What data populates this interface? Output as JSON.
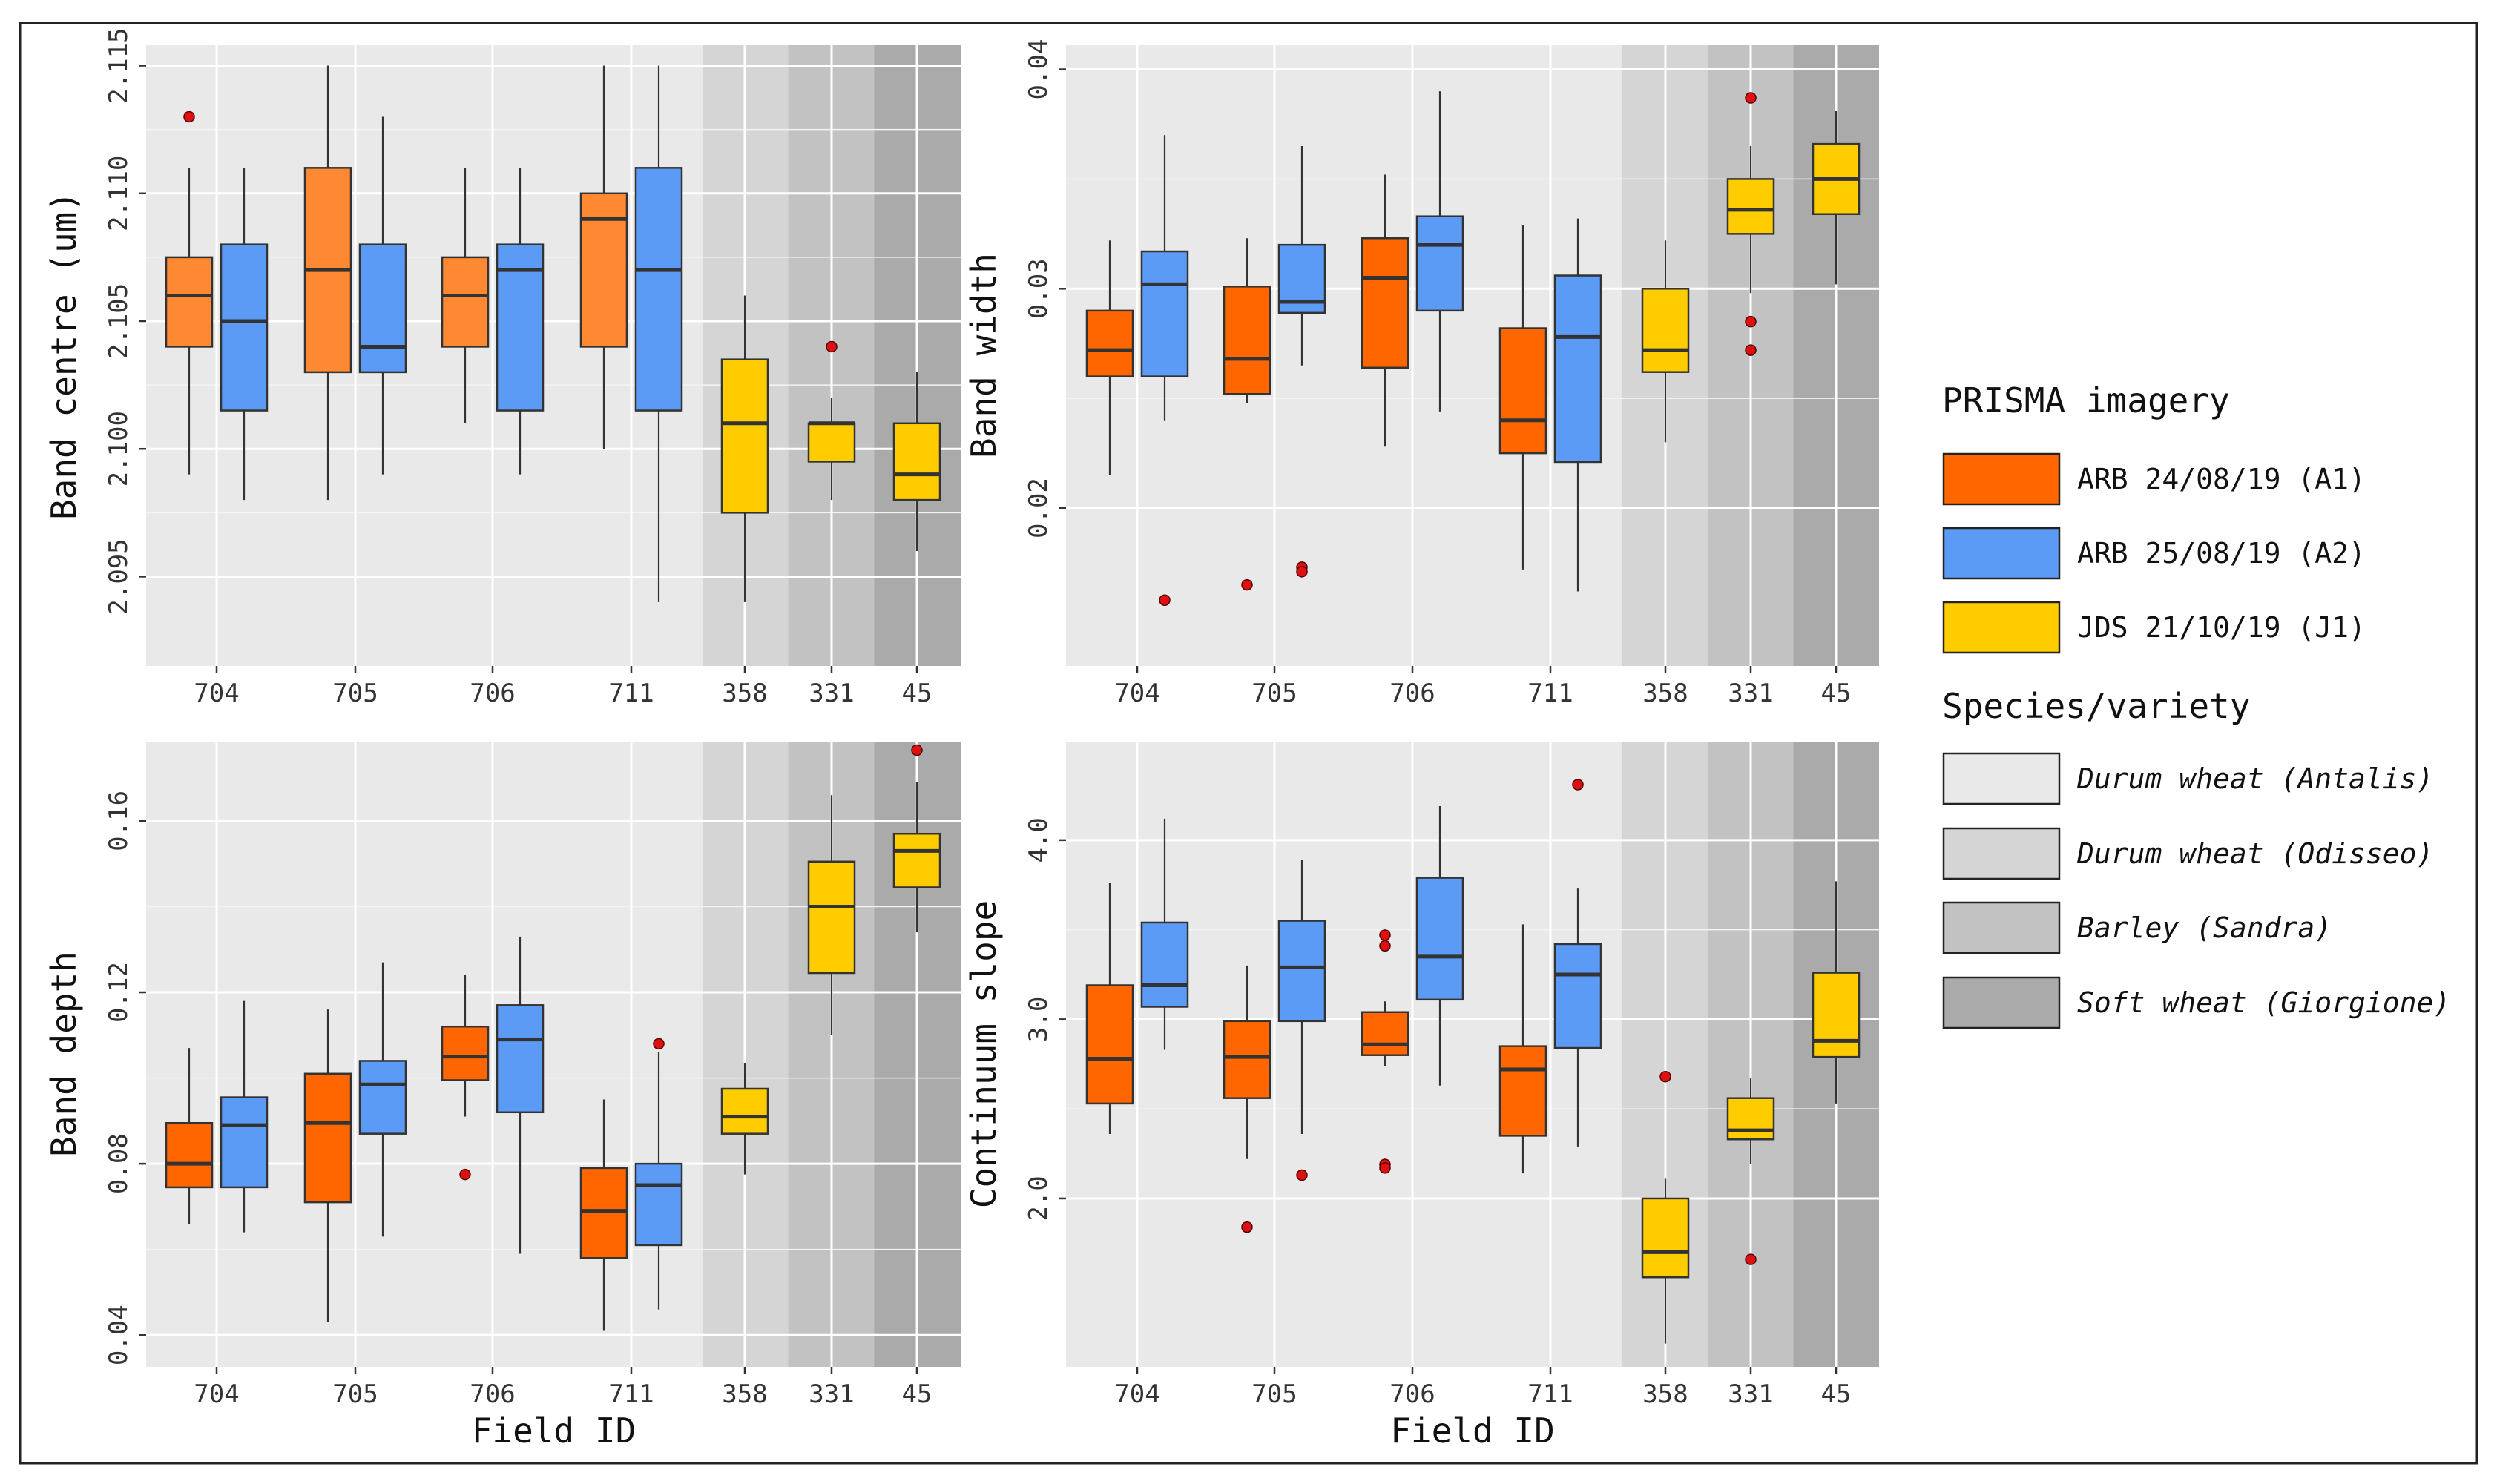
{
  "colors": {
    "A1_early": "#ff8833",
    "A1": "#ff6600",
    "A2": "#5b9bf5",
    "J1": "#ffcc00",
    "outlier": "#dd1111",
    "bg_antalis": "#e9e9e9",
    "bg_odisseo": "#d5d5d5",
    "bg_sandra": "#c2c2c2",
    "bg_giorgione": "#aaaaaa"
  },
  "legend": {
    "imagery_title": "PRISMA imagery",
    "imagery": [
      {
        "key": "A1",
        "label": "ARB 24/08/19 (A1)",
        "color": "#ff6600"
      },
      {
        "key": "A2",
        "label": "ARB 25/08/19 (A2)",
        "color": "#5b9bf5"
      },
      {
        "key": "J1",
        "label": "JDS 21/10/19 (J1)",
        "color": "#ffcc00"
      }
    ],
    "species_title": "Species/variety",
    "species": [
      {
        "label": "Durum wheat (Antalis)",
        "color": "#e9e9e9"
      },
      {
        "label": "Durum wheat (Odisseo)",
        "color": "#d5d5d5"
      },
      {
        "label": "Barley (Sandra)",
        "color": "#c2c2c2"
      },
      {
        "label": "Soft wheat (Giorgione)",
        "color": "#aaaaaa"
      }
    ]
  },
  "chart_data": [
    {
      "type": "boxplot",
      "id": "band-centre",
      "ylabel": "Band centre (um)",
      "xlabel": "",
      "ylim": [
        2.0915,
        2.1158
      ],
      "yticks": [
        2.095,
        2.1,
        2.105,
        2.11,
        2.115
      ],
      "ytick_labels": [
        "2.095",
        "2.100",
        "2.105",
        "2.110",
        "2.115"
      ],
      "categories": [
        "704",
        "705",
        "706",
        "711",
        "358",
        "331",
        "45"
      ],
      "boxes": [
        {
          "field": "704",
          "series": "A1",
          "min": 2.099,
          "q1": 2.104,
          "median": 2.106,
          "q3": 2.1075,
          "max": 2.111,
          "outliers": [
            2.113
          ]
        },
        {
          "field": "704",
          "series": "A2",
          "min": 2.098,
          "q1": 2.1015,
          "median": 2.105,
          "q3": 2.108,
          "max": 2.111,
          "outliers": []
        },
        {
          "field": "705",
          "series": "A1",
          "min": 2.098,
          "q1": 2.103,
          "median": 2.107,
          "q3": 2.111,
          "max": 2.115,
          "outliers": []
        },
        {
          "field": "705",
          "series": "A2",
          "min": 2.099,
          "q1": 2.103,
          "median": 2.104,
          "q3": 2.108,
          "max": 2.113,
          "outliers": []
        },
        {
          "field": "706",
          "series": "A1",
          "min": 2.101,
          "q1": 2.104,
          "median": 2.106,
          "q3": 2.1075,
          "max": 2.111,
          "outliers": []
        },
        {
          "field": "706",
          "series": "A2",
          "min": 2.099,
          "q1": 2.1015,
          "median": 2.107,
          "q3": 2.108,
          "max": 2.111,
          "outliers": []
        },
        {
          "field": "711",
          "series": "A1",
          "min": 2.1,
          "q1": 2.104,
          "median": 2.109,
          "q3": 2.11,
          "max": 2.115,
          "outliers": []
        },
        {
          "field": "711",
          "series": "A2",
          "min": 2.094,
          "q1": 2.1015,
          "median": 2.107,
          "q3": 2.111,
          "max": 2.115,
          "outliers": []
        },
        {
          "field": "358",
          "series": "J1",
          "min": 2.094,
          "q1": 2.0975,
          "median": 2.101,
          "q3": 2.1035,
          "max": 2.106,
          "outliers": []
        },
        {
          "field": "331",
          "series": "J1",
          "min": 2.098,
          "q1": 2.0995,
          "median": 2.101,
          "q3": 2.101,
          "max": 2.102,
          "outliers": [
            2.104
          ]
        },
        {
          "field": "45",
          "series": "J1",
          "min": 2.096,
          "q1": 2.098,
          "median": 2.099,
          "q3": 2.101,
          "max": 2.103,
          "outliers": []
        }
      ]
    },
    {
      "type": "boxplot",
      "id": "band-width",
      "ylabel": "Band width",
      "xlabel": "",
      "ylim": [
        0.0128,
        0.0411
      ],
      "yticks": [
        0.02,
        0.03,
        0.04
      ],
      "ytick_labels": [
        "0.02",
        "0.03",
        "0.04"
      ],
      "categories": [
        "704",
        "705",
        "706",
        "711",
        "358",
        "331",
        "45"
      ],
      "boxes": [
        {
          "field": "704",
          "series": "A1",
          "min": 0.0215,
          "q1": 0.026,
          "median": 0.0272,
          "q3": 0.029,
          "max": 0.0322,
          "outliers": []
        },
        {
          "field": "704",
          "series": "A2",
          "min": 0.024,
          "q1": 0.026,
          "median": 0.0302,
          "q3": 0.0317,
          "max": 0.037,
          "outliers": [
            0.0158
          ]
        },
        {
          "field": "705",
          "series": "A1",
          "min": 0.0248,
          "q1": 0.0252,
          "median": 0.0268,
          "q3": 0.0301,
          "max": 0.0323,
          "outliers": [
            0.0165
          ]
        },
        {
          "field": "705",
          "series": "A2",
          "min": 0.0265,
          "q1": 0.0289,
          "median": 0.0294,
          "q3": 0.032,
          "max": 0.0365,
          "outliers": [
            0.0173,
            0.0171
          ]
        },
        {
          "field": "706",
          "series": "A1",
          "min": 0.0228,
          "q1": 0.0264,
          "median": 0.0305,
          "q3": 0.0323,
          "max": 0.0352,
          "outliers": []
        },
        {
          "field": "706",
          "series": "A2",
          "min": 0.0244,
          "q1": 0.029,
          "median": 0.032,
          "q3": 0.0333,
          "max": 0.039,
          "outliers": []
        },
        {
          "field": "711",
          "series": "A1",
          "min": 0.0172,
          "q1": 0.0225,
          "median": 0.024,
          "q3": 0.0282,
          "max": 0.0329,
          "outliers": []
        },
        {
          "field": "711",
          "series": "A2",
          "min": 0.0162,
          "q1": 0.0221,
          "median": 0.0278,
          "q3": 0.0306,
          "max": 0.0332,
          "outliers": []
        },
        {
          "field": "358",
          "series": "J1",
          "min": 0.023,
          "q1": 0.0262,
          "median": 0.0272,
          "q3": 0.03,
          "max": 0.0322,
          "outliers": []
        },
        {
          "field": "331",
          "series": "J1",
          "min": 0.0298,
          "q1": 0.0325,
          "median": 0.0336,
          "q3": 0.035,
          "max": 0.0365,
          "outliers": [
            0.0387,
            0.0285,
            0.0272
          ]
        },
        {
          "field": "45",
          "series": "J1",
          "min": 0.0302,
          "q1": 0.0334,
          "median": 0.035,
          "q3": 0.0366,
          "max": 0.0381,
          "outliers": []
        }
      ]
    },
    {
      "type": "boxplot",
      "id": "band-depth",
      "ylabel": "Band depth",
      "xlabel": "Field ID",
      "ylim": [
        0.0326,
        0.1785
      ],
      "yticks": [
        0.04,
        0.08,
        0.12,
        0.16
      ],
      "ytick_labels": [
        "0.04",
        "0.08",
        "0.12",
        "0.16"
      ],
      "categories": [
        "704",
        "705",
        "706",
        "711",
        "358",
        "331",
        "45"
      ],
      "boxes": [
        {
          "field": "704",
          "series": "A1",
          "min": 0.066,
          "q1": 0.0745,
          "median": 0.08,
          "q3": 0.0895,
          "max": 0.107,
          "outliers": []
        },
        {
          "field": "704",
          "series": "A2",
          "min": 0.064,
          "q1": 0.0745,
          "median": 0.089,
          "q3": 0.0955,
          "max": 0.118,
          "outliers": []
        },
        {
          "field": "705",
          "series": "A1",
          "min": 0.043,
          "q1": 0.071,
          "median": 0.0895,
          "q3": 0.101,
          "max": 0.116,
          "outliers": []
        },
        {
          "field": "705",
          "series": "A2",
          "min": 0.063,
          "q1": 0.087,
          "median": 0.0985,
          "q3": 0.104,
          "max": 0.127,
          "outliers": []
        },
        {
          "field": "706",
          "series": "A1",
          "min": 0.091,
          "q1": 0.0995,
          "median": 0.105,
          "q3": 0.112,
          "max": 0.124,
          "outliers": [
            0.0775
          ]
        },
        {
          "field": "706",
          "series": "A2",
          "min": 0.059,
          "q1": 0.092,
          "median": 0.109,
          "q3": 0.117,
          "max": 0.133,
          "outliers": []
        },
        {
          "field": "711",
          "series": "A1",
          "min": 0.041,
          "q1": 0.058,
          "median": 0.069,
          "q3": 0.079,
          "max": 0.095,
          "outliers": []
        },
        {
          "field": "711",
          "series": "A2",
          "min": 0.046,
          "q1": 0.061,
          "median": 0.075,
          "q3": 0.08,
          "max": 0.106,
          "outliers": [
            0.108
          ]
        },
        {
          "field": "358",
          "series": "J1",
          "min": 0.0775,
          "q1": 0.087,
          "median": 0.091,
          "q3": 0.0975,
          "max": 0.1035,
          "outliers": []
        },
        {
          "field": "331",
          "series": "J1",
          "min": 0.11,
          "q1": 0.1245,
          "median": 0.14,
          "q3": 0.1505,
          "max": 0.166,
          "outliers": []
        },
        {
          "field": "45",
          "series": "J1",
          "min": 0.134,
          "q1": 0.1445,
          "median": 0.153,
          "q3": 0.157,
          "max": 0.169,
          "outliers": [
            0.1765
          ]
        }
      ]
    },
    {
      "type": "boxplot",
      "id": "continuum-slope",
      "ylabel": "Continuum slope",
      "xlabel": "Field ID",
      "ylim": [
        1.06,
        4.55
      ],
      "yticks": [
        2.0,
        3.0,
        4.0
      ],
      "ytick_labels": [
        "2.0",
        "3.0",
        "4.0"
      ],
      "categories": [
        "704",
        "705",
        "706",
        "711",
        "358",
        "331",
        "45"
      ],
      "boxes": [
        {
          "field": "704",
          "series": "A1",
          "min": 2.36,
          "q1": 2.53,
          "median": 2.78,
          "q3": 3.19,
          "max": 3.76,
          "outliers": []
        },
        {
          "field": "704",
          "series": "A2",
          "min": 2.83,
          "q1": 3.07,
          "median": 3.19,
          "q3": 3.54,
          "max": 4.12,
          "outliers": []
        },
        {
          "field": "705",
          "series": "A1",
          "min": 2.22,
          "q1": 2.56,
          "median": 2.79,
          "q3": 2.99,
          "max": 3.3,
          "outliers": [
            1.84
          ]
        },
        {
          "field": "705",
          "series": "A2",
          "min": 2.36,
          "q1": 2.99,
          "median": 3.29,
          "q3": 3.55,
          "max": 3.89,
          "outliers": [
            2.13
          ]
        },
        {
          "field": "706",
          "series": "A1",
          "min": 2.74,
          "q1": 2.8,
          "median": 2.86,
          "q3": 3.04,
          "max": 3.1,
          "outliers": [
            3.47,
            3.41,
            2.19,
            2.17
          ]
        },
        {
          "field": "706",
          "series": "A2",
          "min": 2.63,
          "q1": 3.11,
          "median": 3.35,
          "q3": 3.79,
          "max": 4.19,
          "outliers": []
        },
        {
          "field": "711",
          "series": "A1",
          "min": 2.14,
          "q1": 2.35,
          "median": 2.72,
          "q3": 2.85,
          "max": 3.53,
          "outliers": []
        },
        {
          "field": "711",
          "series": "A2",
          "min": 2.29,
          "q1": 2.84,
          "median": 3.25,
          "q3": 3.42,
          "max": 3.73,
          "outliers": [
            4.31
          ]
        },
        {
          "field": "358",
          "series": "J1",
          "min": 1.19,
          "q1": 1.56,
          "median": 1.7,
          "q3": 2.0,
          "max": 2.11,
          "outliers": [
            2.68
          ]
        },
        {
          "field": "331",
          "series": "J1",
          "min": 2.19,
          "q1": 2.33,
          "median": 2.38,
          "q3": 2.56,
          "max": 2.67,
          "outliers": [
            1.66
          ]
        },
        {
          "field": "45",
          "series": "J1",
          "min": 2.53,
          "q1": 2.79,
          "median": 2.88,
          "q3": 3.26,
          "max": 3.77,
          "outliers": []
        }
      ]
    }
  ]
}
